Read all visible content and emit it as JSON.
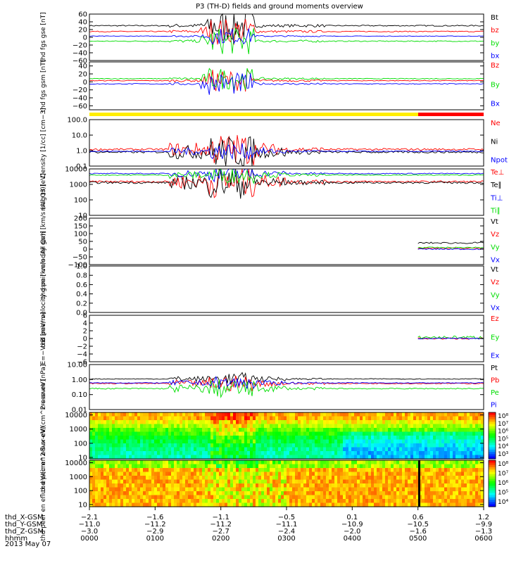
{
  "title": "P3 (TH-D) fields and ground moments overview",
  "date": "2013 May 07",
  "colors": {
    "black": "#000000",
    "red": "#ff0000",
    "green": "#00dd00",
    "blue": "#0000ff",
    "yellow": "#ffee00"
  },
  "chart_data": [
    {
      "type": "line",
      "ylabel": "thd fgs gse [nT]",
      "ylim": [
        -60,
        60
      ],
      "ticks": [
        "60",
        "40",
        "20",
        "0",
        "−20",
        "−40",
        "−60"
      ],
      "tickvals": [
        60,
        40,
        20,
        0,
        -20,
        -40,
        -60
      ],
      "legend": [
        {
          "name": "Bt",
          "color": "black"
        },
        {
          "name": "bz",
          "color": "red"
        },
        {
          "name": "by",
          "color": "green"
        },
        {
          "name": "bx",
          "color": "blue"
        }
      ],
      "series": [
        {
          "name": "Bt",
          "base": 30,
          "amp": 6
        },
        {
          "name": "bz",
          "base": 15,
          "amp": 5
        },
        {
          "name": "by",
          "base": -10,
          "amp": 5
        },
        {
          "name": "bx",
          "base": 3,
          "amp": 3
        }
      ]
    },
    {
      "type": "line",
      "ylabel": "thd fgs gsm [nT]",
      "ylim": [
        -70,
        50
      ],
      "ticks": [
        "40",
        "20",
        "0",
        "−20",
        "−40",
        "−60"
      ],
      "tickvals": [
        40,
        20,
        0,
        -20,
        -40,
        -60
      ],
      "legend": [
        {
          "name": "Bz",
          "color": "red"
        },
        {
          "name": "By",
          "color": "green"
        },
        {
          "name": "Bx",
          "color": "blue"
        }
      ],
      "series": [
        {
          "name": "Bz",
          "base": 3,
          "amp": 4
        },
        {
          "name": "By",
          "base": 8,
          "amp": 4
        },
        {
          "name": "Bx",
          "base": -5,
          "amp": 4
        }
      ]
    },
    {
      "type": "line",
      "ylabel": "Density [1/cc] [cm−3]",
      "log": true,
      "ylim": [
        0.1,
        100
      ],
      "ticks": [
        "100.0",
        "10.0",
        "1.0",
        "0.1"
      ],
      "tickvals": [
        100,
        10,
        1,
        0.1
      ],
      "legend": [
        {
          "name": "Ne",
          "color": "red"
        },
        {
          "name": "Ni",
          "color": "black"
        },
        {
          "name": "Npot",
          "color": "blue"
        }
      ],
      "series": [
        {
          "name": "Ne",
          "base": 1.2,
          "amp": 1
        },
        {
          "name": "Ni",
          "base": 0.8,
          "amp": 1
        },
        {
          "name": "Npot",
          "base": 0.9,
          "amp": 0.5
        }
      ]
    },
    {
      "type": "line",
      "ylabel": "mag t3 [eV]",
      "log": true,
      "ylim": [
        10,
        10000
      ],
      "ticks": [
        "10000",
        "1000",
        "100",
        "10"
      ],
      "tickvals": [
        10000,
        1000,
        100,
        10
      ],
      "legend": [
        {
          "name": "Te⊥",
          "color": "red"
        },
        {
          "name": "Te∥",
          "color": "black"
        },
        {
          "name": "Ti⊥",
          "color": "blue"
        },
        {
          "name": "Ti∥",
          "color": "green"
        }
      ],
      "series": [
        {
          "name": "Te⊥",
          "base": 1500,
          "amp": 1
        },
        {
          "name": "Te∥",
          "base": 1300,
          "amp": 1
        },
        {
          "name": "Ti⊥",
          "base": 5000,
          "amp": 0.5
        },
        {
          "name": "Ti∥",
          "base": 4000,
          "amp": 0.5
        }
      ]
    },
    {
      "type": "line",
      "ylabel": "thd peir velocity gsm [km/s (All Qs)]",
      "ylim": [
        -100,
        200
      ],
      "ticks": [
        "200",
        "150",
        "100",
        "50",
        "0",
        "−50",
        "−100"
      ],
      "tickvals": [
        200,
        150,
        100,
        50,
        0,
        -50,
        -100
      ],
      "legend": [
        {
          "name": "Vt",
          "color": "black"
        },
        {
          "name": "Vz",
          "color": "red"
        },
        {
          "name": "Vy",
          "color": "green"
        },
        {
          "name": "Vx",
          "color": "blue"
        }
      ],
      "series": [
        {
          "name": "Vt",
          "base": 40,
          "amp": 20,
          "start": 0.835
        },
        {
          "name": "Vz",
          "base": 5,
          "amp": 15,
          "start": 0.835
        },
        {
          "name": "Vy",
          "base": 10,
          "amp": 15,
          "start": 0.835
        },
        {
          "name": "Vx",
          "base": 0,
          "amp": 15,
          "start": 0.835
        }
      ]
    },
    {
      "type": "line",
      "ylabel": "thd peer velocity gsm [km/s (All Qs)]",
      "ylim": [
        0,
        1
      ],
      "ticks": [
        "1.0",
        "0.8",
        "0.6",
        "0.4",
        "0.2",
        "0.0"
      ],
      "tickvals": [
        1,
        0.8,
        0.6,
        0.4,
        0.2,
        0
      ],
      "legend": [
        {
          "name": "Vt",
          "color": "black"
        },
        {
          "name": "Vz",
          "color": "red"
        },
        {
          "name": "Vy",
          "color": "green"
        },
        {
          "name": "Vx",
          "color": "blue"
        }
      ],
      "series": []
    },
    {
      "type": "line",
      "ylabel": "E=−VxB [mV/m]",
      "ylim": [
        -6,
        6
      ],
      "ticks": [
        "6",
        "4",
        "2",
        "0",
        "−2",
        "−4",
        "−6"
      ],
      "tickvals": [
        6,
        4,
        2,
        0,
        -2,
        -4,
        -6
      ],
      "legend": [
        {
          "name": "Ez",
          "color": "red"
        },
        {
          "name": "Ey",
          "color": "green"
        },
        {
          "name": "Ex",
          "color": "blue"
        }
      ],
      "series": [
        {
          "name": "Ez",
          "base": 0,
          "amp": 0.8,
          "start": 0.835
        },
        {
          "name": "Ey",
          "base": 0.3,
          "amp": 1.5,
          "start": 0.835
        },
        {
          "name": "Ex",
          "base": 0,
          "amp": 0.6,
          "start": 0.835
        }
      ]
    },
    {
      "type": "line",
      "ylabel": "Pressure [nPa]",
      "log": true,
      "ylim": [
        0.01,
        10
      ],
      "ticks": [
        "10.00",
        "1.00",
        "0.10",
        "0.01"
      ],
      "tickvals": [
        10,
        1,
        0.1,
        0.01
      ],
      "legend": [
        {
          "name": "Pt",
          "color": "black"
        },
        {
          "name": "Pb",
          "color": "red"
        },
        {
          "name": "Pe",
          "color": "green"
        },
        {
          "name": "Pi",
          "color": "blue"
        }
      ],
      "series": [
        {
          "name": "Pt",
          "base": 1.1,
          "amp": 0.4
        },
        {
          "name": "Pb",
          "base": 0.55,
          "amp": 0.5
        },
        {
          "name": "Pe",
          "base": 0.25,
          "amp": 0.6
        },
        {
          "name": "Pi",
          "base": 0.6,
          "amp": 0.4
        }
      ]
    },
    {
      "type": "heatmap",
      "ylabel": "thd peir en eflux eV/(cm^2-s-sr-eV)",
      "log": true,
      "ylim": [
        8,
        15000
      ],
      "ticks": [
        "10000",
        "1000",
        "100",
        "10"
      ],
      "tickvals": [
        10000,
        1000,
        100,
        10
      ],
      "colorbar": [
        "10⁸",
        "10⁷",
        "10⁶",
        "10⁵",
        "10⁴",
        "10³"
      ]
    },
    {
      "type": "heatmap",
      "ylabel": "thd peer en eflux eV/(cm^2-s-sr-eV)",
      "log": true,
      "ylim": [
        7,
        15000
      ],
      "ticks": [
        "10000",
        "1000",
        "100",
        "10"
      ],
      "tickvals": [
        10000,
        1000,
        100,
        10
      ],
      "colorbar": [
        "10⁸",
        "10⁷",
        "10⁶",
        "10⁵",
        "10⁴"
      ]
    }
  ],
  "xaxis": {
    "rowlabels": [
      "thd_X-GSM",
      "thd_Y-GSM",
      "thd_Z-GSM",
      "hhmm"
    ],
    "columns": [
      [
        "−2.1",
        "−11.0",
        "−3.0",
        "0000"
      ],
      [
        "−1.6",
        "−11.2",
        "−2.9",
        "0100"
      ],
      [
        "−1.1",
        "−11.2",
        "−2.7",
        "0200"
      ],
      [
        "−0.5",
        "−11.1",
        "−2.4",
        "0300"
      ],
      [
        "0.1",
        "−10.9",
        "−2.0",
        "0400"
      ],
      [
        "0.6",
        "−10.5",
        "−1.6",
        "0500"
      ],
      [
        "1.2",
        "−9.9",
        "−1.3",
        "0600"
      ]
    ]
  }
}
